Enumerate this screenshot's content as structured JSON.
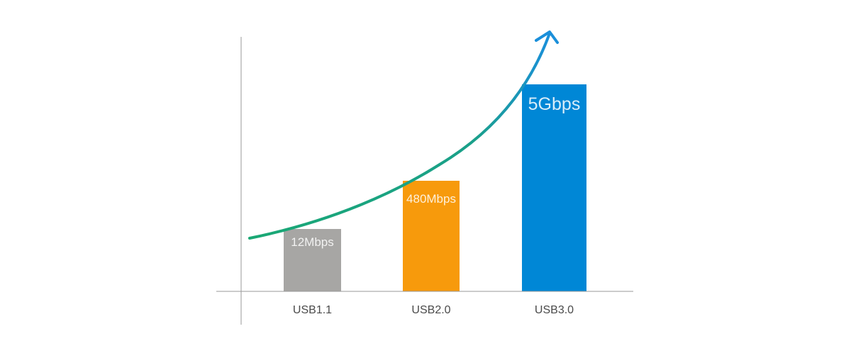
{
  "chart_data": {
    "type": "bar",
    "title": "",
    "xlabel": "",
    "ylabel": "",
    "categories": [
      "USB1.1",
      "USB2.0",
      "USB3.0"
    ],
    "values": [
      12,
      480,
      5000
    ],
    "value_unit": "Mbps",
    "data_labels": [
      "12Mbps",
      "480Mbps",
      "5Gbps"
    ],
    "colors": [
      "#a7a6a4",
      "#f79a0c",
      "#0087d6"
    ],
    "grid": false,
    "legend": "none",
    "y_ticks": false,
    "trend_arrow": {
      "colors": [
        "#1aa874",
        "#1a8fda"
      ]
    },
    "axis_color": "#9a9a9a",
    "label_color": "#4a4a4a"
  }
}
